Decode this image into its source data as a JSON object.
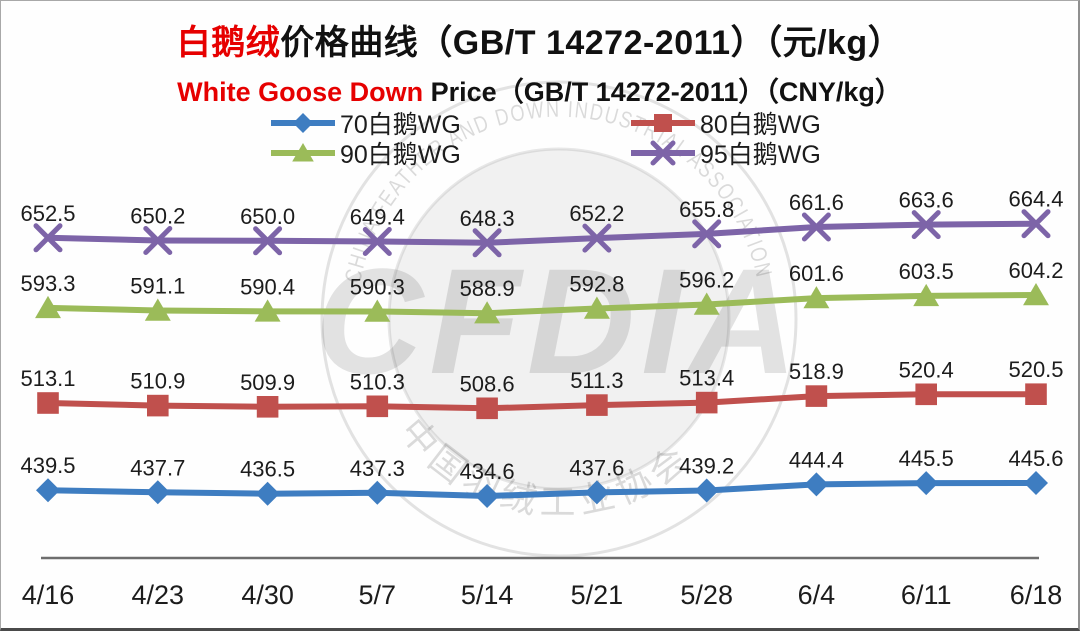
{
  "title": {
    "cn_red": "白鹅绒",
    "cn_rest": "价格曲线（GB/T 14272-2011）（元/kg）",
    "en_red": "White Goose Down",
    "en_rest": " Price（GB/T 14272-2011）（CNY/kg）"
  },
  "watermark": {
    "center_text": "CFDIA",
    "arc_top_text": "CHINA FEATHER AND DOWN INDUSTRIAL ASSOCIATION",
    "arc_bottom_text": "中国羽绒工业协会"
  },
  "colors": {
    "title_red": "#e60000",
    "text": "#1c1c1c",
    "axis_line": "#6e6e6e"
  },
  "chart_data": {
    "type": "line",
    "title": "白鹅绒价格曲线（GB/T 14272-2011）（元/kg）",
    "subtitle": "White Goose Down Price（GB/T 14272-2011）（CNY/kg）",
    "categories": [
      "4/16",
      "4/23",
      "4/30",
      "5/7",
      "5/14",
      "5/21",
      "5/28",
      "6/4",
      "6/11",
      "6/18"
    ],
    "series": [
      {
        "name": "70白鹅WG",
        "marker": "diamond",
        "color": "#3e7dc1",
        "values": [
          439.5,
          437.7,
          436.5,
          437.3,
          434.6,
          437.6,
          439.2,
          444.4,
          445.5,
          445.6
        ]
      },
      {
        "name": "80白鹅WG",
        "marker": "square",
        "color": "#c0504d",
        "values": [
          513.1,
          510.9,
          509.9,
          510.3,
          508.6,
          511.3,
          513.4,
          518.9,
          520.4,
          520.5
        ]
      },
      {
        "name": "90白鹅WG",
        "marker": "triangle",
        "color": "#9bbb59",
        "values": [
          593.3,
          591.1,
          590.4,
          590.3,
          588.9,
          592.8,
          596.2,
          601.6,
          603.5,
          604.2
        ]
      },
      {
        "name": "95白鹅WG",
        "marker": "x",
        "color": "#7d64a8",
        "values": [
          652.5,
          650.2,
          650.0,
          649.4,
          648.3,
          652.2,
          655.8,
          661.6,
          663.6,
          664.4
        ]
      }
    ],
    "legend_position": "top",
    "data_labels": true,
    "grid": false,
    "y_axis_visible": false,
    "ylim_estimate": [
      380,
      700
    ]
  }
}
